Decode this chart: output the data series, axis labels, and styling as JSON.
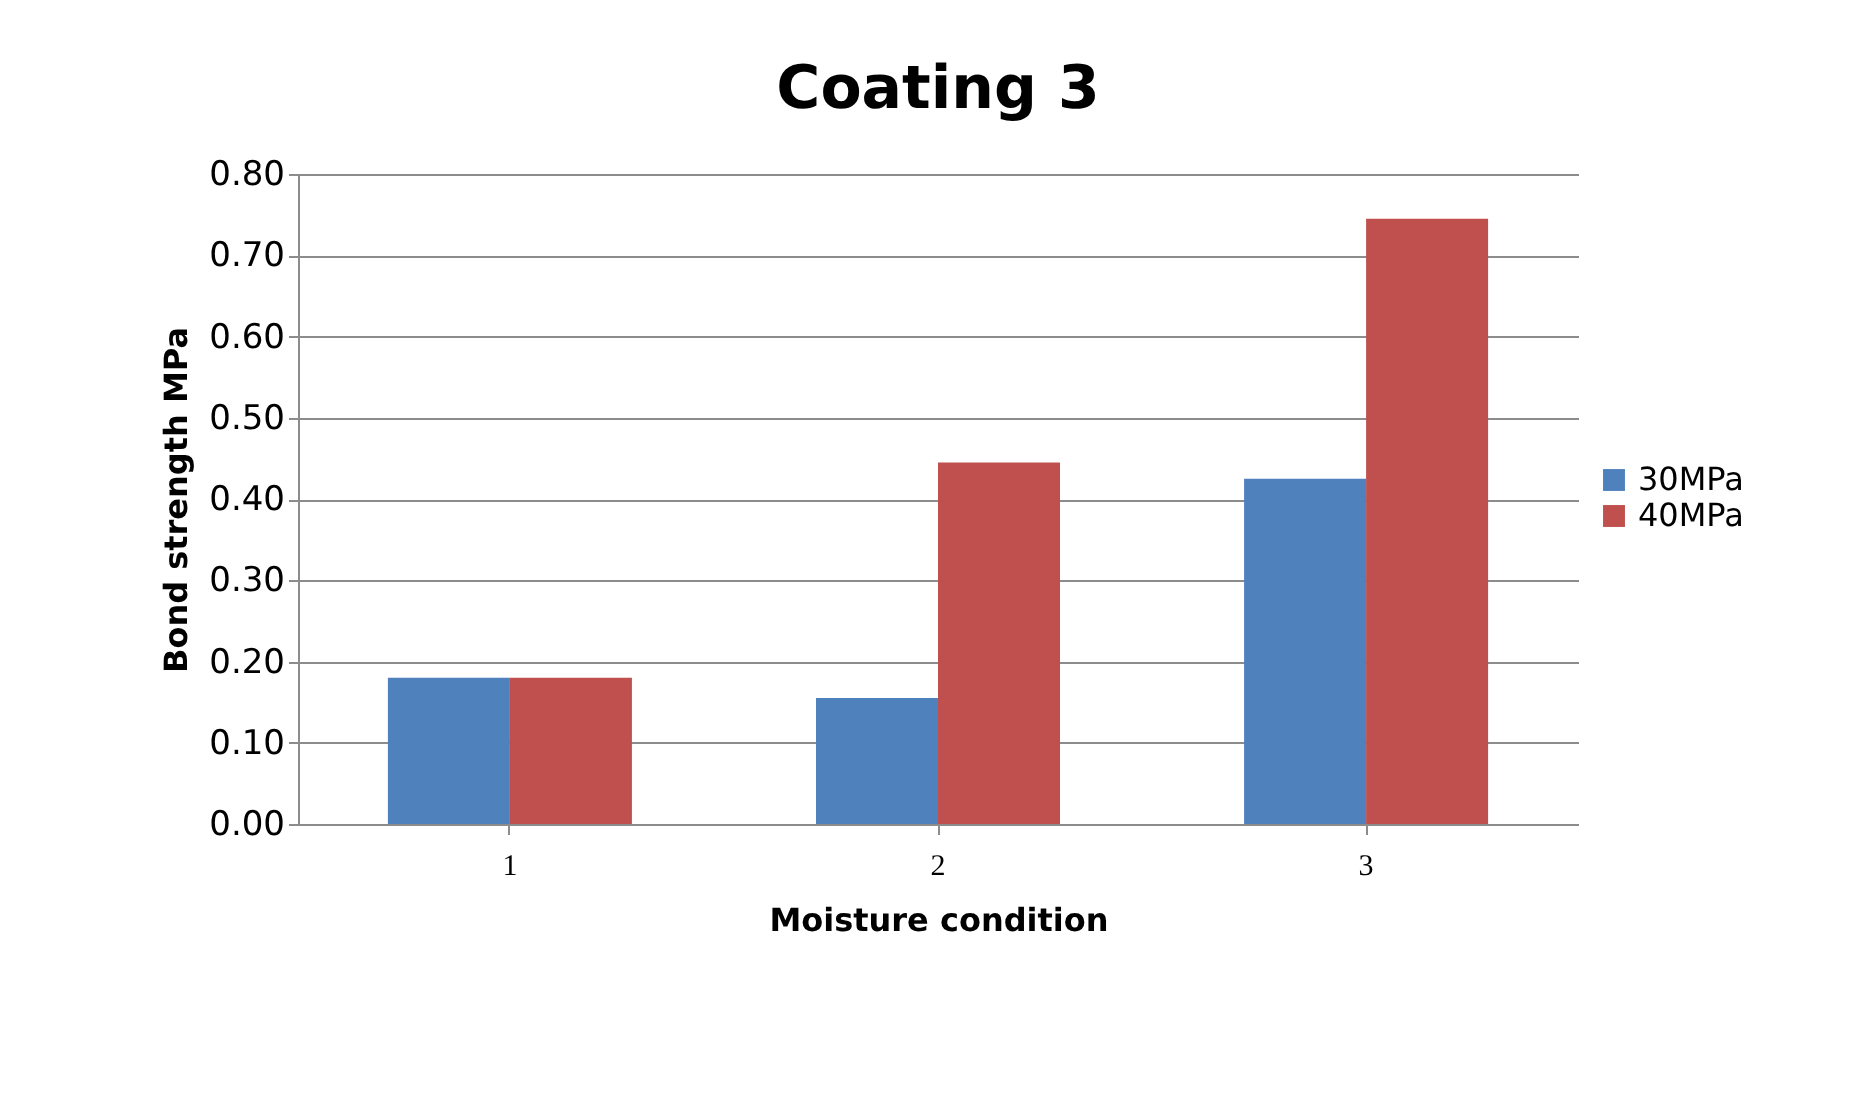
{
  "chart_data": {
    "type": "bar",
    "title": "Coating 3",
    "xlabel": "Moisture condition",
    "ylabel": "Bond strength MPa",
    "categories": [
      "1",
      "2",
      "3"
    ],
    "series": [
      {
        "name": "30MPa",
        "color": "#4f81bd",
        "values": [
          0.18,
          0.155,
          0.425
        ]
      },
      {
        "name": "40MPa",
        "color": "#c0504d",
        "values": [
          0.18,
          0.445,
          0.745
        ]
      }
    ],
    "ylim": [
      0,
      0.8
    ],
    "yticks": [
      {
        "value": 0,
        "label": "0.00"
      },
      {
        "value": 0.1,
        "label": "0.10"
      },
      {
        "value": 0.2,
        "label": "0.20"
      },
      {
        "value": 0.3,
        "label": "0.30"
      },
      {
        "value": 0.4,
        "label": "0.40"
      },
      {
        "value": 0.5,
        "label": "0.50"
      },
      {
        "value": 0.6,
        "label": "0.60"
      },
      {
        "value": 0.7,
        "label": "0.70"
      },
      {
        "value": 0.8,
        "label": "0.80"
      }
    ],
    "grid": "y",
    "legend": "right"
  }
}
